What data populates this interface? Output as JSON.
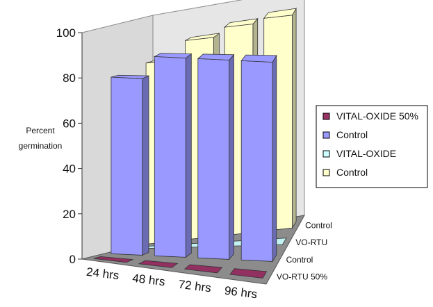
{
  "chart_data": {
    "type": "bar",
    "subtype": "3d-column",
    "title": "",
    "ylabel": [
      "Percent",
      "germination"
    ],
    "ylim": [
      0,
      100
    ],
    "yticks": [
      0,
      20,
      40,
      60,
      80,
      100
    ],
    "categories": [
      "24 hrs",
      "48 hrs",
      "72 hrs",
      "96 hrs"
    ],
    "depth_labels": [
      "Control",
      "VO-RTU",
      "Control",
      "VO-RTU 50%"
    ],
    "series": [
      {
        "name": "VITAL-OXIDE 50%",
        "color": "#993366",
        "depth_row": 3,
        "values": [
          0,
          0,
          0,
          0
        ]
      },
      {
        "name": "Control",
        "color": "#9999ff",
        "depth_row": 2,
        "values": [
          78,
          88,
          88,
          88
        ]
      },
      {
        "name": "VITAL-OXIDE",
        "color": "#ccffff",
        "depth_row": 1,
        "values": [
          0,
          0,
          0,
          0
        ]
      },
      {
        "name": "Control",
        "color": "#ffffcc",
        "depth_row": 0,
        "values": [
          80,
          88,
          92,
          94
        ]
      }
    ],
    "legend": {
      "position": "right"
    },
    "grid": false
  }
}
